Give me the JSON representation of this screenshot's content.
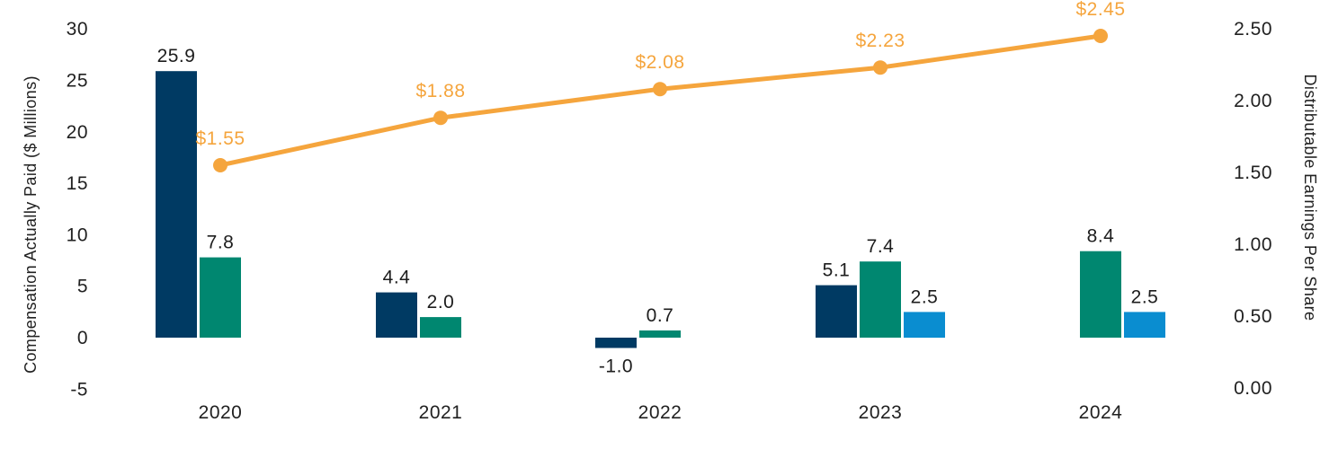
{
  "chart_data": {
    "type": "bar",
    "title": "",
    "categories": [
      "2020",
      "2021",
      "2022",
      "2023",
      "2024"
    ],
    "series": [
      {
        "id": "bar-series-navy",
        "type": "bar",
        "color": "#003A63",
        "values": [
          25.9,
          4.4,
          -1.0,
          5.1,
          null
        ],
        "labels": [
          "25.9",
          "4.4",
          "-1.0",
          "5.1",
          ""
        ]
      },
      {
        "id": "bar-series-teal",
        "type": "bar",
        "color": "#008770",
        "values": [
          7.8,
          2.0,
          0.7,
          7.4,
          8.4
        ],
        "labels": [
          "7.8",
          "2.0",
          "0.7",
          "7.4",
          "8.4"
        ]
      },
      {
        "id": "bar-series-blue",
        "type": "bar",
        "color": "#0A8DD0",
        "values": [
          null,
          null,
          null,
          2.5,
          2.5
        ],
        "labels": [
          "",
          "",
          "",
          "2.5",
          "2.5"
        ]
      },
      {
        "id": "line-series-eps",
        "type": "line",
        "axis": "right",
        "color": "#F5A53D",
        "values": [
          1.55,
          1.88,
          2.08,
          2.23,
          2.45
        ],
        "labels": [
          "$1.55",
          "$1.88",
          "$2.08",
          "$2.23",
          "$2.45"
        ]
      }
    ],
    "left_axis": {
      "title": "Compensation Actually Paid ($ Millions)",
      "ticks": [
        "30",
        "25",
        "20",
        "15",
        "10",
        "5",
        "0",
        "-5"
      ],
      "tick_values": [
        30,
        25,
        20,
        15,
        10,
        5,
        0,
        -5
      ],
      "range": [
        -5,
        30
      ]
    },
    "right_axis": {
      "title": "Distributable Earnings Per Share",
      "ticks": [
        "2.50",
        "2.00",
        "1.50",
        "1.00",
        "0.50",
        "0.00"
      ],
      "tick_values": [
        2.5,
        2.0,
        1.5,
        1.0,
        0.5,
        0.0
      ],
      "range": [
        0.0,
        2.5
      ]
    },
    "grid": false,
    "legend": "none",
    "text_color": "#212121",
    "background_color": "#FFFFFF"
  }
}
